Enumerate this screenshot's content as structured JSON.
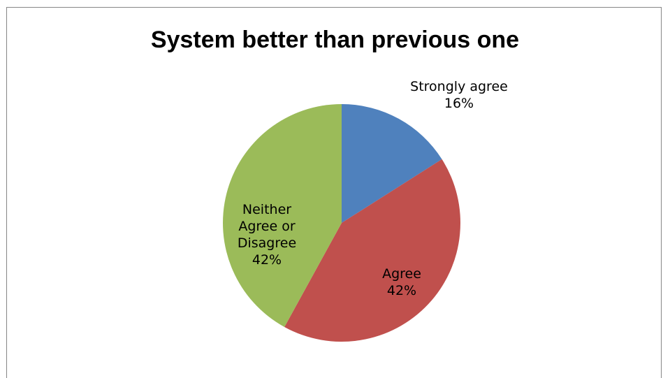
{
  "chart_data": {
    "type": "pie",
    "title": "System better than previous one",
    "slices": [
      {
        "name": "Strongly agree",
        "value": 16,
        "label": "16%",
        "label_lines": [
          "Strongly agree",
          "16%"
        ],
        "color": "#4F81BD"
      },
      {
        "name": "Agree",
        "value": 42,
        "label": "42%",
        "label_lines": [
          "Agree",
          "42%"
        ],
        "color": "#C0504D"
      },
      {
        "name": "Neither Agree or Disagree",
        "value": 42,
        "label": "42%",
        "label_lines": [
          "Neither",
          "Agree or",
          "Disagree",
          "42%"
        ],
        "color": "#9BBB59"
      }
    ],
    "start_angle": "12 o'clock",
    "direction": "clockwise",
    "legend": "none"
  }
}
